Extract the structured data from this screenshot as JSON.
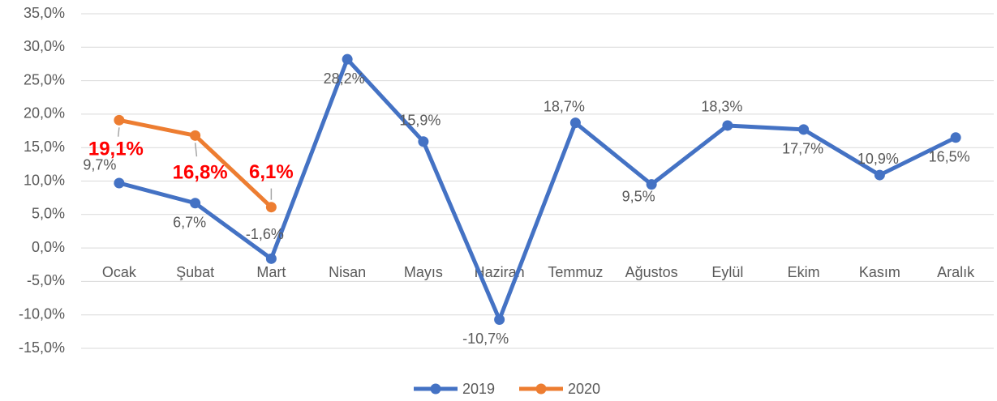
{
  "chart_data": {
    "type": "line",
    "categories": [
      "Ocak",
      "Şubat",
      "Mart",
      "Nisan",
      "Mayıs",
      "Haziran",
      "Temmuz",
      "Ağustos",
      "Eylül",
      "Ekim",
      "Kasım",
      "Aralık"
    ],
    "series": [
      {
        "name": "2019",
        "color": "#4472c4",
        "values": [
          9.7,
          6.7,
          -1.6,
          28.2,
          15.9,
          -10.7,
          18.7,
          9.5,
          18.3,
          17.7,
          10.9,
          16.5
        ],
        "value_labels": [
          "9,7%",
          "6,7%",
          "-1,6%",
          "28,2%",
          "15,9%",
          "-10,7%",
          "18,7%",
          "9,5%",
          "18,3%",
          "17,7%",
          "10,9%",
          "16,5%"
        ]
      },
      {
        "name": "2020",
        "color": "#ed7d31",
        "values": [
          19.1,
          16.8,
          6.1,
          null,
          null,
          null,
          null,
          null,
          null,
          null,
          null,
          null
        ],
        "value_labels": [
          "19,1%",
          "16,8%",
          "6,1%",
          null,
          null,
          null,
          null,
          null,
          null,
          null,
          null,
          null
        ]
      }
    ],
    "ylim": [
      -15,
      35
    ],
    "yticks": [
      {
        "value": -15,
        "label": "-15,0%"
      },
      {
        "value": -10,
        "label": "-10,0%"
      },
      {
        "value": -5,
        "label": "-5,0%"
      },
      {
        "value": 0,
        "label": "0,0%"
      },
      {
        "value": 5,
        "label": "5,0%"
      },
      {
        "value": 10,
        "label": "10,0%"
      },
      {
        "value": 15,
        "label": "15,0%"
      },
      {
        "value": 20,
        "label": "20,0%"
      },
      {
        "value": 25,
        "label": "25,0%"
      },
      {
        "value": 30,
        "label": "30,0%"
      },
      {
        "value": 35,
        "label": "35,0%"
      }
    ],
    "grid": true,
    "legend": "bottom"
  }
}
